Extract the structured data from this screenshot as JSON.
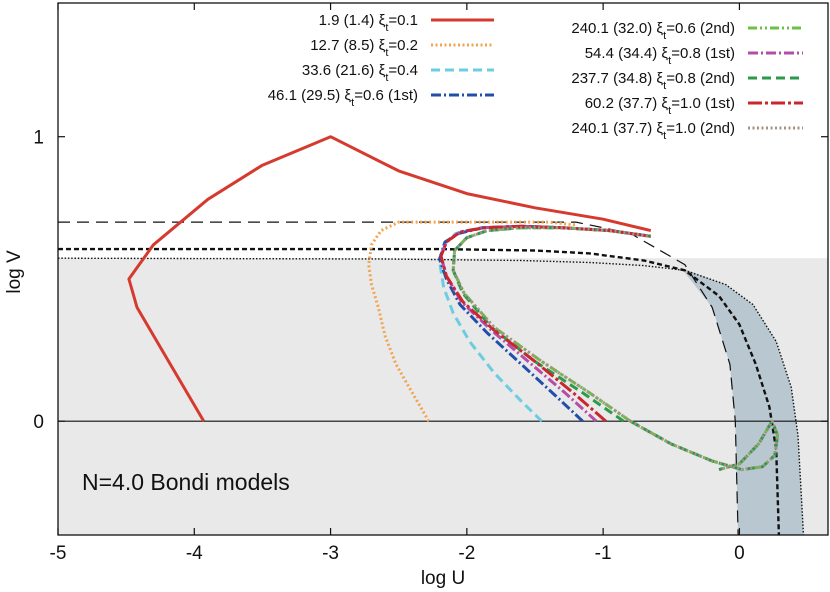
{
  "chart_data": {
    "type": "line",
    "title": "",
    "xlabel": "log U",
    "ylabel": "log V",
    "xlim": [
      -5,
      0.65
    ],
    "ylim": [
      -0.4,
      1.47
    ],
    "xticks": [
      -5,
      -4,
      -3,
      -2,
      -1,
      0
    ],
    "xtick_labels": [
      "-5",
      "-4",
      "-3",
      "-2",
      "-1",
      "0"
    ],
    "yticks": [
      0,
      1
    ],
    "ytick_labels": [
      "0",
      "1"
    ],
    "grid": false,
    "legend_placement": "top",
    "annotation": "N=4.0 Bondi models",
    "shaded_regions": {
      "gray_region_color": "#e9e9e9",
      "gray_region_top_logV": 0.573,
      "blue_region_color": "#b8c7d0"
    },
    "reference_lines": [
      {
        "style": "long-dashed",
        "x": [
          -5,
          -2.6,
          -1.2,
          -0.8,
          -0.4,
          -0.2,
          -0.07,
          -0.03,
          -0.01
        ],
        "y": [
          0.7,
          0.7,
          0.7,
          0.66,
          0.55,
          0.4,
          0.2,
          0,
          -0.4
        ]
      },
      {
        "style": "short-dashed",
        "x": [
          -5,
          -2.2,
          -1.5,
          -1.1,
          -0.7,
          -0.4,
          -0.15,
          0,
          0.12,
          0.22,
          0.27,
          0.29
        ],
        "y": [
          0.605,
          0.605,
          0.6,
          0.59,
          0.565,
          0.53,
          0.44,
          0.34,
          0.2,
          0.05,
          -0.1,
          -0.4
        ]
      },
      {
        "style": "dotted",
        "x": [
          -5,
          -2.6,
          -1.6,
          -1.1,
          -0.7,
          -0.4,
          -0.1,
          0.1,
          0.27,
          0.38,
          0.43,
          0.47
        ],
        "y": [
          0.573,
          0.57,
          0.565,
          0.558,
          0.547,
          0.53,
          0.48,
          0.41,
          0.28,
          0.12,
          -0.05,
          -0.4
        ]
      },
      {
        "style": "solid-thin",
        "x": [
          -5,
          0.65
        ],
        "y": [
          0,
          0
        ]
      }
    ],
    "series": [
      {
        "name": "1.9 (1.4)",
        "xi": "0.1",
        "suffix": "",
        "color": "#d63a2f",
        "style": "solid",
        "x": [
          -3.93,
          -4.2,
          -4.42,
          -4.48,
          -4.3,
          -3.9,
          -3.5,
          -3.0,
          -2.5,
          -2.0,
          -1.5,
          -1.0,
          -0.65
        ],
        "y": [
          0.0,
          0.22,
          0.4,
          0.5,
          0.62,
          0.78,
          0.9,
          1.0,
          0.88,
          0.8,
          0.75,
          0.71,
          0.67
        ]
      },
      {
        "name": "12.7 (8.5)",
        "xi": "0.2",
        "suffix": "",
        "color": "#f2a450",
        "style": "dotted",
        "x": [
          -2.28,
          -2.4,
          -2.52,
          -2.6,
          -2.65,
          -2.7,
          -2.72,
          -2.7,
          -2.63,
          -2.5,
          -2.2,
          -1.8,
          -1.4,
          -1.2
        ],
        "y": [
          0.0,
          0.1,
          0.2,
          0.3,
          0.4,
          0.48,
          0.55,
          0.62,
          0.67,
          0.7,
          0.7,
          0.7,
          0.7,
          0.69
        ]
      },
      {
        "name": "33.6 (21.6)",
        "xi": "0.4",
        "suffix": "",
        "color": "#6ccde0",
        "style": "dashed",
        "x": [
          -1.45,
          -1.6,
          -1.8,
          -1.98,
          -2.1,
          -2.17,
          -2.2,
          -2.17,
          -2.08,
          -1.9,
          -1.6,
          -1.3,
          -0.95,
          -0.65
        ],
        "y": [
          0.0,
          0.07,
          0.17,
          0.28,
          0.38,
          0.47,
          0.56,
          0.62,
          0.66,
          0.68,
          0.685,
          0.68,
          0.67,
          0.65
        ]
      },
      {
        "name": "46.1 (29.5)",
        "xi": "0.6",
        "suffix": "(1st)",
        "color": "#1f4fa8",
        "style": "dash-dot",
        "x": [
          -1.15,
          -1.35,
          -1.6,
          -1.85,
          -2.05,
          -2.15,
          -2.2,
          -2.16,
          -2.06,
          -1.88,
          -1.6,
          -1.3,
          -0.95,
          -0.65
        ],
        "y": [
          0.0,
          0.09,
          0.2,
          0.31,
          0.41,
          0.5,
          0.57,
          0.63,
          0.66,
          0.68,
          0.685,
          0.68,
          0.67,
          0.65
        ]
      },
      {
        "name": "240.1 (32.0)",
        "xi": "0.6",
        "suffix": "(2nd)",
        "color": "#6cc043",
        "style": "dash-dot-dot",
        "x": [
          -0.8,
          -1.1,
          -1.45,
          -1.8,
          -2.02,
          -2.1,
          -2.09,
          -2.0,
          -1.85,
          -1.6,
          -1.3,
          -0.95,
          -0.65
        ],
        "y": [
          0.0,
          0.1,
          0.21,
          0.33,
          0.45,
          0.53,
          0.6,
          0.645,
          0.67,
          0.68,
          0.68,
          0.67,
          0.65
        ]
      },
      {
        "name": "54.4 (34.4)",
        "xi": "0.8",
        "suffix": "(1st)",
        "color": "#b64ca9",
        "style": "dash-dot",
        "x": [
          -1.05,
          -1.28,
          -1.55,
          -1.82,
          -2.04,
          -2.15,
          -2.19,
          -2.15,
          -2.05,
          -1.87,
          -1.6,
          -1.3,
          -0.95,
          -0.65
        ],
        "y": [
          0.0,
          0.1,
          0.21,
          0.32,
          0.42,
          0.51,
          0.58,
          0.63,
          0.665,
          0.68,
          0.685,
          0.68,
          0.67,
          0.65
        ]
      },
      {
        "name": "237.7 (34.8)",
        "xi": "0.8",
        "suffix": "(2nd)",
        "color": "#2b9a4a",
        "style": "dashed",
        "x": [
          -0.85,
          -1.15,
          -1.5,
          -1.82,
          -2.03,
          -2.1,
          -2.09,
          -2.0,
          -1.85,
          -1.6,
          -1.3,
          -0.95,
          -0.65
        ],
        "y": [
          0.0,
          0.1,
          0.21,
          0.33,
          0.45,
          0.53,
          0.6,
          0.645,
          0.67,
          0.68,
          0.68,
          0.67,
          0.65
        ]
      },
      {
        "name": "60.2 (37.7)",
        "xi": "1.0",
        "suffix": "(1st)",
        "color": "#c9262e",
        "style": "long-dash-dot",
        "x": [
          -0.98,
          -1.22,
          -1.5,
          -1.8,
          -2.03,
          -2.15,
          -2.19,
          -2.15,
          -2.05,
          -1.87,
          -1.6,
          -1.3,
          -0.95,
          -0.65
        ],
        "y": [
          0.0,
          0.1,
          0.21,
          0.32,
          0.42,
          0.51,
          0.58,
          0.63,
          0.665,
          0.68,
          0.685,
          0.68,
          0.67,
          0.65
        ]
      },
      {
        "name": "240.1 (37.7)",
        "xi": "1.0",
        "suffix": "(2nd)",
        "color": "#a39386",
        "style": "dotted",
        "x": [
          -0.8,
          -1.1,
          -1.45,
          -1.8,
          -2.02,
          -2.1,
          -2.09,
          -2.0,
          -1.85,
          -1.6,
          -1.3,
          -0.95,
          -0.65
        ],
        "y": [
          0.0,
          0.1,
          0.21,
          0.33,
          0.45,
          0.53,
          0.6,
          0.645,
          0.67,
          0.68,
          0.68,
          0.67,
          0.65
        ]
      }
    ],
    "second_branch_loop": {
      "x": [
        -0.8,
        -0.5,
        -0.2,
        0.02,
        0.17,
        0.26,
        0.28,
        0.24,
        0.14,
        0.0,
        -0.15
      ],
      "y": [
        0.0,
        -0.08,
        -0.14,
        -0.17,
        -0.16,
        -0.12,
        -0.05,
        0.0,
        -0.08,
        -0.15,
        -0.17
      ]
    }
  }
}
